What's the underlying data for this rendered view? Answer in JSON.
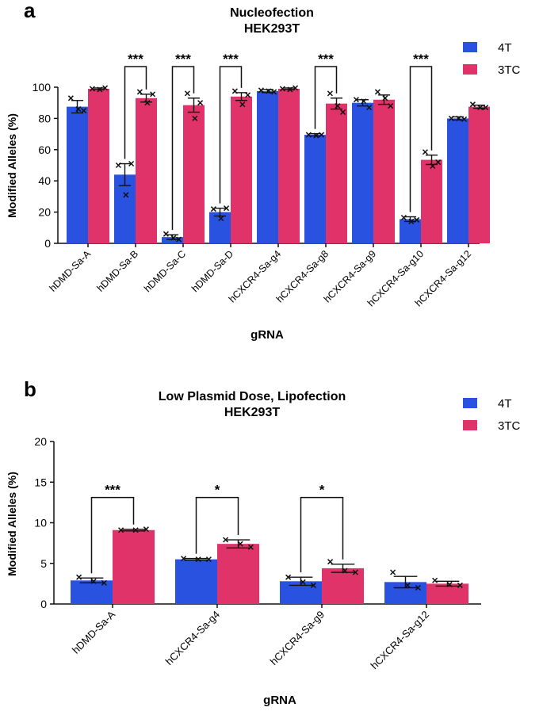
{
  "colors": {
    "series_4T": "#2A52E0",
    "series_3TC": "#E0336A",
    "axis": "#111111",
    "marker": "#111111"
  },
  "chart_data": [
    {
      "panel_label": "a",
      "type": "bar",
      "title": "Nucleofection",
      "subtitle": "HEK293T",
      "xlabel": "gRNA",
      "ylabel": "Modified Alleles (%)",
      "ylim": [
        0,
        100
      ],
      "yticks": [
        0,
        20,
        40,
        60,
        80,
        100
      ],
      "grid": false,
      "legend_position": "top-right",
      "categories": [
        "hDMD-Sa-A",
        "hDMD-Sa-B",
        "hDMD-Sa-C",
        "hDMD-Sa-D",
        "hCXCR4-Sa-g4",
        "hCXCR4-Sa-g8",
        "hCXCR4-Sa-g9",
        "hCXCR4-Sa-g10",
        "hCXCR4-Sa-g12"
      ],
      "series": [
        {
          "name": "4T",
          "values": [
            87.5,
            44,
            4,
            20,
            97.5,
            69.5,
            90,
            15.5,
            80
          ],
          "errors": [
            4,
            7,
            1.5,
            2.5,
            1,
            0.7,
            2,
            1.5,
            1
          ],
          "replicates": [
            [
              93,
              85,
              86
            ],
            [
              50,
              51,
              31
            ],
            [
              6,
              2.5,
              3.5
            ],
            [
              22,
              22.5,
              16
            ],
            [
              98,
              97,
              97.5
            ],
            [
              69.5,
              69.5,
              69
            ],
            [
              92,
              87,
              91
            ],
            [
              16.5,
              15,
              14
            ],
            [
              80,
              79.5,
              80
            ]
          ]
        },
        {
          "name": "3TC",
          "values": [
            99,
            93,
            88.5,
            94,
            99,
            89.5,
            92,
            53.5,
            87.5
          ],
          "errors": [
            0.5,
            2.5,
            4.5,
            2.5,
            0.5,
            3.5,
            3,
            3,
            1
          ],
          "replicates": [
            [
              99,
              99.5,
              98.5
            ],
            [
              97,
              95.5,
              90
            ],
            [
              96,
              90,
              80
            ],
            [
              97.5,
              95,
              89
            ],
            [
              99,
              99.5,
              98.5
            ],
            [
              96,
              84,
              88
            ],
            [
              97,
              88,
              93
            ],
            [
              58.5,
              52,
              49.5
            ],
            [
              89,
              87,
              87
            ]
          ]
        }
      ],
      "significance": [
        {
          "category_index": 1,
          "label": "***"
        },
        {
          "category_index": 2,
          "label": "***"
        },
        {
          "category_index": 3,
          "label": "***"
        },
        {
          "category_index": 5,
          "label": "***"
        },
        {
          "category_index": 7,
          "label": "***"
        }
      ]
    },
    {
      "panel_label": "b",
      "type": "bar",
      "title": "Low Plasmid Dose, Lipofection",
      "subtitle": "HEK293T",
      "xlabel": "gRNA",
      "ylabel": "Modified Alleles (%)",
      "ylim": [
        0,
        20
      ],
      "yticks": [
        0,
        5,
        10,
        15,
        20
      ],
      "grid": false,
      "legend_position": "top-right",
      "categories": [
        "hDMD-Sa-A",
        "hCXCR4-Sa-g4",
        "hCXCR4-Sa-g9",
        "hCXCR4-Sa-g12"
      ],
      "series": [
        {
          "name": "4T",
          "values": [
            2.9,
            5.5,
            2.8,
            2.7
          ],
          "errors": [
            0.3,
            0.1,
            0.5,
            0.7
          ],
          "replicates": [
            [
              3.3,
              2.6,
              2.8
            ],
            [
              5.6,
              5.5,
              5.5
            ],
            [
              3.3,
              2.3,
              2.7
            ],
            [
              3.9,
              2.0,
              2.3
            ]
          ]
        },
        {
          "name": "3TC",
          "values": [
            9.1,
            7.4,
            4.4,
            2.5
          ],
          "errors": [
            0.1,
            0.5,
            0.5,
            0.3
          ],
          "replicates": [
            [
              9.1,
              9.2,
              9.1
            ],
            [
              7.9,
              7.0,
              7.4
            ],
            [
              5.2,
              3.9,
              4.1
            ],
            [
              2.9,
              2.3,
              2.4
            ]
          ]
        }
      ],
      "significance": [
        {
          "category_index": 0,
          "label": "***"
        },
        {
          "category_index": 1,
          "label": "*"
        },
        {
          "category_index": 2,
          "label": "*"
        }
      ]
    }
  ]
}
